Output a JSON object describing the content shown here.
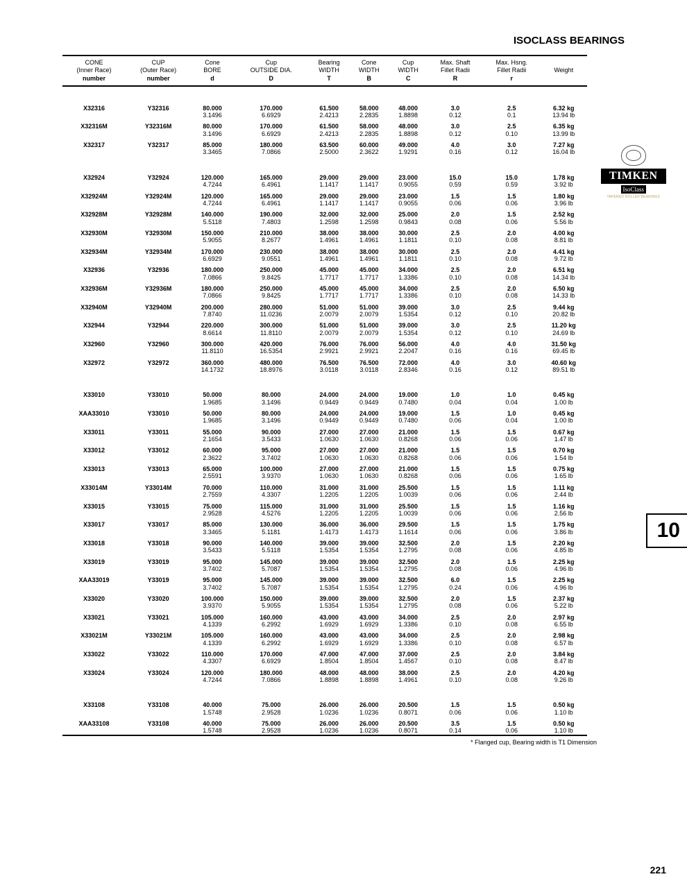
{
  "page": {
    "title": "ISOCLASS BEARINGS",
    "footnote": "* Flanged cup, Bearing width is T1 Dimension",
    "page_number": "221",
    "tab_number": "10"
  },
  "brand": {
    "name": "TIMKEN",
    "sub": "IsoClass",
    "tag": "TAPERED ROLLER BEARINGS"
  },
  "headers": [
    [
      "CONE",
      "(Inner Race)",
      "number"
    ],
    [
      "CUP",
      "(Outer Race)",
      "number"
    ],
    [
      "Cone",
      "BORE",
      "d"
    ],
    [
      "Cup",
      "OUTSIDE DIA.",
      "D"
    ],
    [
      "Bearing",
      "WIDTH",
      "T"
    ],
    [
      "Cone",
      "WIDTH",
      "B"
    ],
    [
      "Cup",
      "WIDTH",
      "C"
    ],
    [
      "Max. Shaft",
      "Fillet Radii",
      "R"
    ],
    [
      "Max. Hsng.",
      "Fillet Radii",
      "r"
    ],
    [
      "Weight",
      "",
      ""
    ]
  ],
  "groups": [
    {
      "rows": [
        {
          "m": [
            "X32316",
            "Y32316",
            "80.000",
            "170.000",
            "61.500",
            "58.000",
            "48.000",
            "3.0",
            "2.5",
            "6.32 kg"
          ],
          "s": [
            "",
            "",
            "3.1496",
            "6.6929",
            "2.4213",
            "2.2835",
            "1.8898",
            "0.12",
            "0.1",
            "13.94 lb"
          ]
        },
        {
          "m": [
            "X32316M",
            "Y32316M",
            "80.000",
            "170.000",
            "61.500",
            "58.000",
            "48.000",
            "3.0",
            "2.5",
            "6.35 kg"
          ],
          "s": [
            "",
            "",
            "3.1496",
            "6.6929",
            "2.4213",
            "2.2835",
            "1.8898",
            "0.12",
            "0.10",
            "13.99 lb"
          ]
        },
        {
          "m": [
            "X32317",
            "Y32317",
            "85.000",
            "180.000",
            "63.500",
            "60.000",
            "49.000",
            "4.0",
            "3.0",
            "7.27 kg"
          ],
          "s": [
            "",
            "",
            "3.3465",
            "7.0866",
            "2.5000",
            "2.3622",
            "1.9291",
            "0.16",
            "0.12",
            "16.04 lb"
          ]
        }
      ]
    },
    {
      "rows": [
        {
          "m": [
            "X32924",
            "Y32924",
            "120.000",
            "165.000",
            "29.000",
            "29.000",
            "23.000",
            "15.0",
            "15.0",
            "1.78 kg"
          ],
          "s": [
            "",
            "",
            "4.7244",
            "6.4961",
            "1.1417",
            "1.1417",
            "0.9055",
            "0.59",
            "0.59",
            "3.92 lb"
          ]
        },
        {
          "m": [
            "X32924M",
            "Y32924M",
            "120.000",
            "165.000",
            "29.000",
            "29.000",
            "23.000",
            "1.5",
            "1.5",
            "1.80 kg"
          ],
          "s": [
            "",
            "",
            "4.7244",
            "6.4961",
            "1.1417",
            "1.1417",
            "0.9055",
            "0.06",
            "0.06",
            "3.96 lb"
          ]
        },
        {
          "m": [
            "X32928M",
            "Y32928M",
            "140.000",
            "190.000",
            "32.000",
            "32.000",
            "25.000",
            "2.0",
            "1.5",
            "2.52 kg"
          ],
          "s": [
            "",
            "",
            "5.5118",
            "7.4803",
            "1.2598",
            "1.2598",
            "0.9843",
            "0.08",
            "0.06",
            "5.56 lb"
          ]
        },
        {
          "m": [
            "X32930M",
            "Y32930M",
            "150.000",
            "210.000",
            "38.000",
            "38.000",
            "30.000",
            "2.5",
            "2.0",
            "4.00 kg"
          ],
          "s": [
            "",
            "",
            "5.9055",
            "8.2677",
            "1.4961",
            "1.4961",
            "1.1811",
            "0.10",
            "0.08",
            "8.81 lb"
          ]
        },
        {
          "m": [
            "X32934M",
            "Y32934M",
            "170.000",
            "230.000",
            "38.000",
            "38.000",
            "30.000",
            "2.5",
            "2.0",
            "4.41 kg"
          ],
          "s": [
            "",
            "",
            "6.6929",
            "9.0551",
            "1.4961",
            "1.4961",
            "1.1811",
            "0.10",
            "0.08",
            "9.72 lb"
          ]
        },
        {
          "m": [
            "X32936",
            "Y32936",
            "180.000",
            "250.000",
            "45.000",
            "45.000",
            "34.000",
            "2.5",
            "2.0",
            "6.51 kg"
          ],
          "s": [
            "",
            "",
            "7.0866",
            "9.8425",
            "1.7717",
            "1.7717",
            "1.3386",
            "0.10",
            "0.08",
            "14.34 lb"
          ]
        },
        {
          "m": [
            "X32936M",
            "Y32936M",
            "180.000",
            "250.000",
            "45.000",
            "45.000",
            "34.000",
            "2.5",
            "2.0",
            "6.50 kg"
          ],
          "s": [
            "",
            "",
            "7.0866",
            "9.8425",
            "1.7717",
            "1.7717",
            "1.3386",
            "0.10",
            "0.08",
            "14.33 lb"
          ]
        },
        {
          "m": [
            "X32940M",
            "Y32940M",
            "200.000",
            "280.000",
            "51.000",
            "51.000",
            "39.000",
            "3.0",
            "2.5",
            "9.44 kg"
          ],
          "s": [
            "",
            "",
            "7.8740",
            "11.0236",
            "2.0079",
            "2.0079",
            "1.5354",
            "0.12",
            "0.10",
            "20.82 lb"
          ]
        },
        {
          "m": [
            "X32944",
            "Y32944",
            "220.000",
            "300.000",
            "51.000",
            "51.000",
            "39.000",
            "3.0",
            "2.5",
            "11.20 kg"
          ],
          "s": [
            "",
            "",
            "8.6614",
            "11.8110",
            "2.0079",
            "2.0079",
            "1.5354",
            "0.12",
            "0.10",
            "24.69 lb"
          ]
        },
        {
          "m": [
            "X32960",
            "Y32960",
            "300.000",
            "420.000",
            "76.000",
            "76.000",
            "56.000",
            "4.0",
            "4.0",
            "31.50 kg"
          ],
          "s": [
            "",
            "",
            "11.8110",
            "16.5354",
            "2.9921",
            "2.9921",
            "2.2047",
            "0.16",
            "0.16",
            "69.45 lb"
          ]
        },
        {
          "m": [
            "X32972",
            "Y32972",
            "360.000",
            "480.000",
            "76.500",
            "76.500",
            "72.000",
            "4.0",
            "3.0",
            "40.60 kg"
          ],
          "s": [
            "",
            "",
            "14.1732",
            "18.8976",
            "3.0118",
            "3.0118",
            "2.8346",
            "0.16",
            "0.12",
            "89.51 lb"
          ]
        }
      ]
    },
    {
      "rows": [
        {
          "m": [
            "X33010",
            "Y33010",
            "50.000",
            "80.000",
            "24.000",
            "24.000",
            "19.000",
            "1.0",
            "1.0",
            "0.45 kg"
          ],
          "s": [
            "",
            "",
            "1.9685",
            "3.1496",
            "0.9449",
            "0.9449",
            "0.7480",
            "0.04",
            "0.04",
            "1.00 lb"
          ]
        },
        {
          "m": [
            "XAA33010",
            "Y33010",
            "50.000",
            "80.000",
            "24.000",
            "24.000",
            "19.000",
            "1.5",
            "1.0",
            "0.45 kg"
          ],
          "s": [
            "",
            "",
            "1.9685",
            "3.1496",
            "0.9449",
            "0.9449",
            "0.7480",
            "0.06",
            "0.04",
            "1.00 lb"
          ]
        },
        {
          "m": [
            "X33011",
            "Y33011",
            "55.000",
            "90.000",
            "27.000",
            "27.000",
            "21.000",
            "1.5",
            "1.5",
            "0.67 kg"
          ],
          "s": [
            "",
            "",
            "2.1654",
            "3.5433",
            "1.0630",
            "1.0630",
            "0.8268",
            "0.06",
            "0.06",
            "1.47 lb"
          ]
        },
        {
          "m": [
            "X33012",
            "Y33012",
            "60.000",
            "95.000",
            "27.000",
            "27.000",
            "21.000",
            "1.5",
            "1.5",
            "0.70 kg"
          ],
          "s": [
            "",
            "",
            "2.3622",
            "3.7402",
            "1.0630",
            "1.0630",
            "0.8268",
            "0.06",
            "0.06",
            "1.54 lb"
          ]
        },
        {
          "m": [
            "X33013",
            "Y33013",
            "65.000",
            "100.000",
            "27.000",
            "27.000",
            "21.000",
            "1.5",
            "1.5",
            "0.75 kg"
          ],
          "s": [
            "",
            "",
            "2.5591",
            "3.9370",
            "1.0630",
            "1.0630",
            "0.8268",
            "0.06",
            "0.06",
            "1.65 lb"
          ]
        },
        {
          "m": [
            "X33014M",
            "Y33014M",
            "70.000",
            "110.000",
            "31.000",
            "31.000",
            "25.500",
            "1.5",
            "1.5",
            "1.11 kg"
          ],
          "s": [
            "",
            "",
            "2.7559",
            "4.3307",
            "1.2205",
            "1.2205",
            "1.0039",
            "0.06",
            "0.06",
            "2.44 lb"
          ]
        },
        {
          "m": [
            "X33015",
            "Y33015",
            "75.000",
            "115.000",
            "31.000",
            "31.000",
            "25.500",
            "1.5",
            "1.5",
            "1.16 kg"
          ],
          "s": [
            "",
            "",
            "2.9528",
            "4.5276",
            "1.2205",
            "1.2205",
            "1.0039",
            "0.06",
            "0.06",
            "2.56 lb"
          ]
        },
        {
          "m": [
            "X33017",
            "Y33017",
            "85.000",
            "130.000",
            "36.000",
            "36.000",
            "29.500",
            "1.5",
            "1.5",
            "1.75 kg"
          ],
          "s": [
            "",
            "",
            "3.3465",
            "5.1181",
            "1.4173",
            "1.4173",
            "1.1614",
            "0.06",
            "0.06",
            "3.86 lb"
          ]
        },
        {
          "m": [
            "X33018",
            "Y33018",
            "90.000",
            "140.000",
            "39.000",
            "39.000",
            "32.500",
            "2.0",
            "1.5",
            "2.20 kg"
          ],
          "s": [
            "",
            "",
            "3.5433",
            "5.5118",
            "1.5354",
            "1.5354",
            "1.2795",
            "0.08",
            "0.06",
            "4.85 lb"
          ]
        },
        {
          "m": [
            "X33019",
            "Y33019",
            "95.000",
            "145.000",
            "39.000",
            "39.000",
            "32.500",
            "2.0",
            "1.5",
            "2.25 kg"
          ],
          "s": [
            "",
            "",
            "3.7402",
            "5.7087",
            "1.5354",
            "1.5354",
            "1.2795",
            "0.08",
            "0.06",
            "4.96 lb"
          ]
        },
        {
          "m": [
            "XAA33019",
            "Y33019",
            "95.000",
            "145.000",
            "39.000",
            "39.000",
            "32.500",
            "6.0",
            "1.5",
            "2.25 kg"
          ],
          "s": [
            "",
            "",
            "3.7402",
            "5.7087",
            "1.5354",
            "1.5354",
            "1.2795",
            "0.24",
            "0.06",
            "4.96 lb"
          ]
        },
        {
          "m": [
            "X33020",
            "Y33020",
            "100.000",
            "150.000",
            "39.000",
            "39.000",
            "32.500",
            "2.0",
            "1.5",
            "2.37 kg"
          ],
          "s": [
            "",
            "",
            "3.9370",
            "5.9055",
            "1.5354",
            "1.5354",
            "1.2795",
            "0.08",
            "0.06",
            "5.22 lb"
          ]
        },
        {
          "m": [
            "X33021",
            "Y33021",
            "105.000",
            "160.000",
            "43.000",
            "43.000",
            "34.000",
            "2.5",
            "2.0",
            "2.97 kg"
          ],
          "s": [
            "",
            "",
            "4.1339",
            "6.2992",
            "1.6929",
            "1.6929",
            "1.3386",
            "0.10",
            "0.08",
            "6.55 lb"
          ]
        },
        {
          "m": [
            "X33021M",
            "Y33021M",
            "105.000",
            "160.000",
            "43.000",
            "43.000",
            "34.000",
            "2.5",
            "2.0",
            "2.98 kg"
          ],
          "s": [
            "",
            "",
            "4.1339",
            "6.2992",
            "1.6929",
            "1.6929",
            "1.3386",
            "0.10",
            "0.08",
            "6.57 lb"
          ]
        },
        {
          "m": [
            "X33022",
            "Y33022",
            "110.000",
            "170.000",
            "47.000",
            "47.000",
            "37.000",
            "2.5",
            "2.0",
            "3.84 kg"
          ],
          "s": [
            "",
            "",
            "4.3307",
            "6.6929",
            "1.8504",
            "1.8504",
            "1.4567",
            "0.10",
            "0.08",
            "8.47 lb"
          ]
        },
        {
          "m": [
            "X33024",
            "Y33024",
            "120.000",
            "180.000",
            "48.000",
            "48.000",
            "38.000",
            "2.5",
            "2.0",
            "4.20 kg"
          ],
          "s": [
            "",
            "",
            "4.7244",
            "7.0866",
            "1.8898",
            "1.8898",
            "1.4961",
            "0.10",
            "0.08",
            "9.26 lb"
          ]
        }
      ]
    },
    {
      "rows": [
        {
          "m": [
            "X33108",
            "Y33108",
            "40.000",
            "75.000",
            "26.000",
            "26.000",
            "20.500",
            "1.5",
            "1.5",
            "0.50 kg"
          ],
          "s": [
            "",
            "",
            "1.5748",
            "2.9528",
            "1.0236",
            "1.0236",
            "0.8071",
            "0.06",
            "0.06",
            "1.10 lb"
          ]
        },
        {
          "m": [
            "XAA33108",
            "Y33108",
            "40.000",
            "75.000",
            "26.000",
            "26.000",
            "20.500",
            "3.5",
            "1.5",
            "0.50 kg"
          ],
          "s": [
            "",
            "",
            "1.5748",
            "2.9528",
            "1.0236",
            "1.0236",
            "0.8071",
            "0.14",
            "0.06",
            "1.10 lb"
          ]
        }
      ]
    }
  ]
}
